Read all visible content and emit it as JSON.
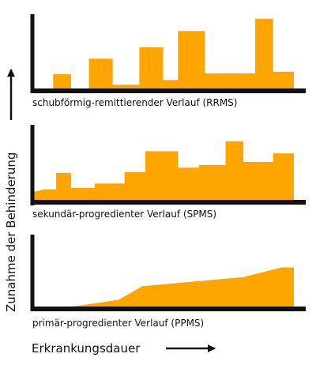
{
  "colors": {
    "fill": "#ffa500",
    "axis": "#111111",
    "text": "#111111"
  },
  "chart_data": [
    {
      "type": "area",
      "title": "schubförmig-remittierender Verlauf (RRMS)",
      "ylim": [
        0,
        100
      ],
      "x": [
        0,
        7,
        7,
        13,
        13,
        19,
        19,
        27,
        27,
        36,
        36,
        44,
        44,
        49,
        49,
        58,
        58,
        66,
        66,
        75,
        75,
        81,
        81,
        88
      ],
      "y": [
        0,
        0,
        22,
        22,
        0,
        0,
        42,
        42,
        8,
        8,
        57,
        57,
        14,
        14,
        78,
        78,
        23,
        23,
        23,
        23,
        94,
        94,
        25,
        25
      ]
    },
    {
      "type": "area",
      "title": "sekundär-progredienter Verlauf (SPMS)",
      "ylim": [
        0,
        100
      ],
      "x": [
        0,
        4,
        4,
        8,
        8,
        13,
        13,
        21,
        21,
        31,
        31,
        38,
        38,
        49,
        49,
        56,
        56,
        65,
        65,
        71,
        71,
        81,
        81,
        88
      ],
      "y": [
        14,
        18,
        18,
        18,
        41,
        41,
        20,
        20,
        26,
        26,
        42,
        42,
        71,
        71,
        48,
        48,
        52,
        52,
        85,
        85,
        56,
        56,
        68,
        68
      ]
    },
    {
      "type": "area",
      "title": "primär-progredienter Verlauf (PPMS)",
      "ylim": [
        0,
        100
      ],
      "x": [
        0,
        8,
        29,
        37,
        71,
        81,
        84,
        88
      ],
      "y": [
        0,
        0,
        18,
        45,
        63,
        78,
        82,
        82
      ]
    }
  ],
  "axes": {
    "y_label": "Zunahme der Behinderung",
    "x_label": "Erkrankungsdauer"
  }
}
